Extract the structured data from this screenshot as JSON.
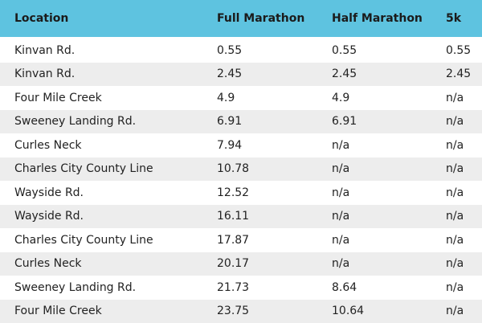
{
  "table": {
    "header": [
      "Location",
      "Full Marathon",
      "Half Marathon",
      "5k"
    ],
    "rows": [
      [
        "Kinvan Rd.",
        "0.55",
        "0.55",
        "0.55"
      ],
      [
        "Kinvan Rd.",
        "2.45",
        "2.45",
        "2.45"
      ],
      [
        "Four Mile Creek",
        "4.9",
        "4.9",
        "n/a"
      ],
      [
        "Sweeney Landing Rd.",
        "6.91",
        "6.91",
        "n/a"
      ],
      [
        "Curles Neck",
        "7.94",
        "n/a",
        "n/a"
      ],
      [
        "Charles City County Line",
        "10.78",
        "n/a",
        "n/a"
      ],
      [
        "Wayside Rd.",
        "12.52",
        "n/a",
        "n/a"
      ],
      [
        "Wayside Rd.",
        "16.11",
        "n/a",
        "n/a"
      ],
      [
        "Charles City County Line",
        "17.87",
        "n/a",
        "n/a"
      ],
      [
        "Curles Neck",
        "20.17",
        "n/a",
        "n/a"
      ],
      [
        "Sweeney Landing Rd.",
        "21.73",
        "8.64",
        "n/a"
      ],
      [
        "Four Mile Creek",
        "23.75",
        "10.64",
        "n/a"
      ]
    ]
  }
}
